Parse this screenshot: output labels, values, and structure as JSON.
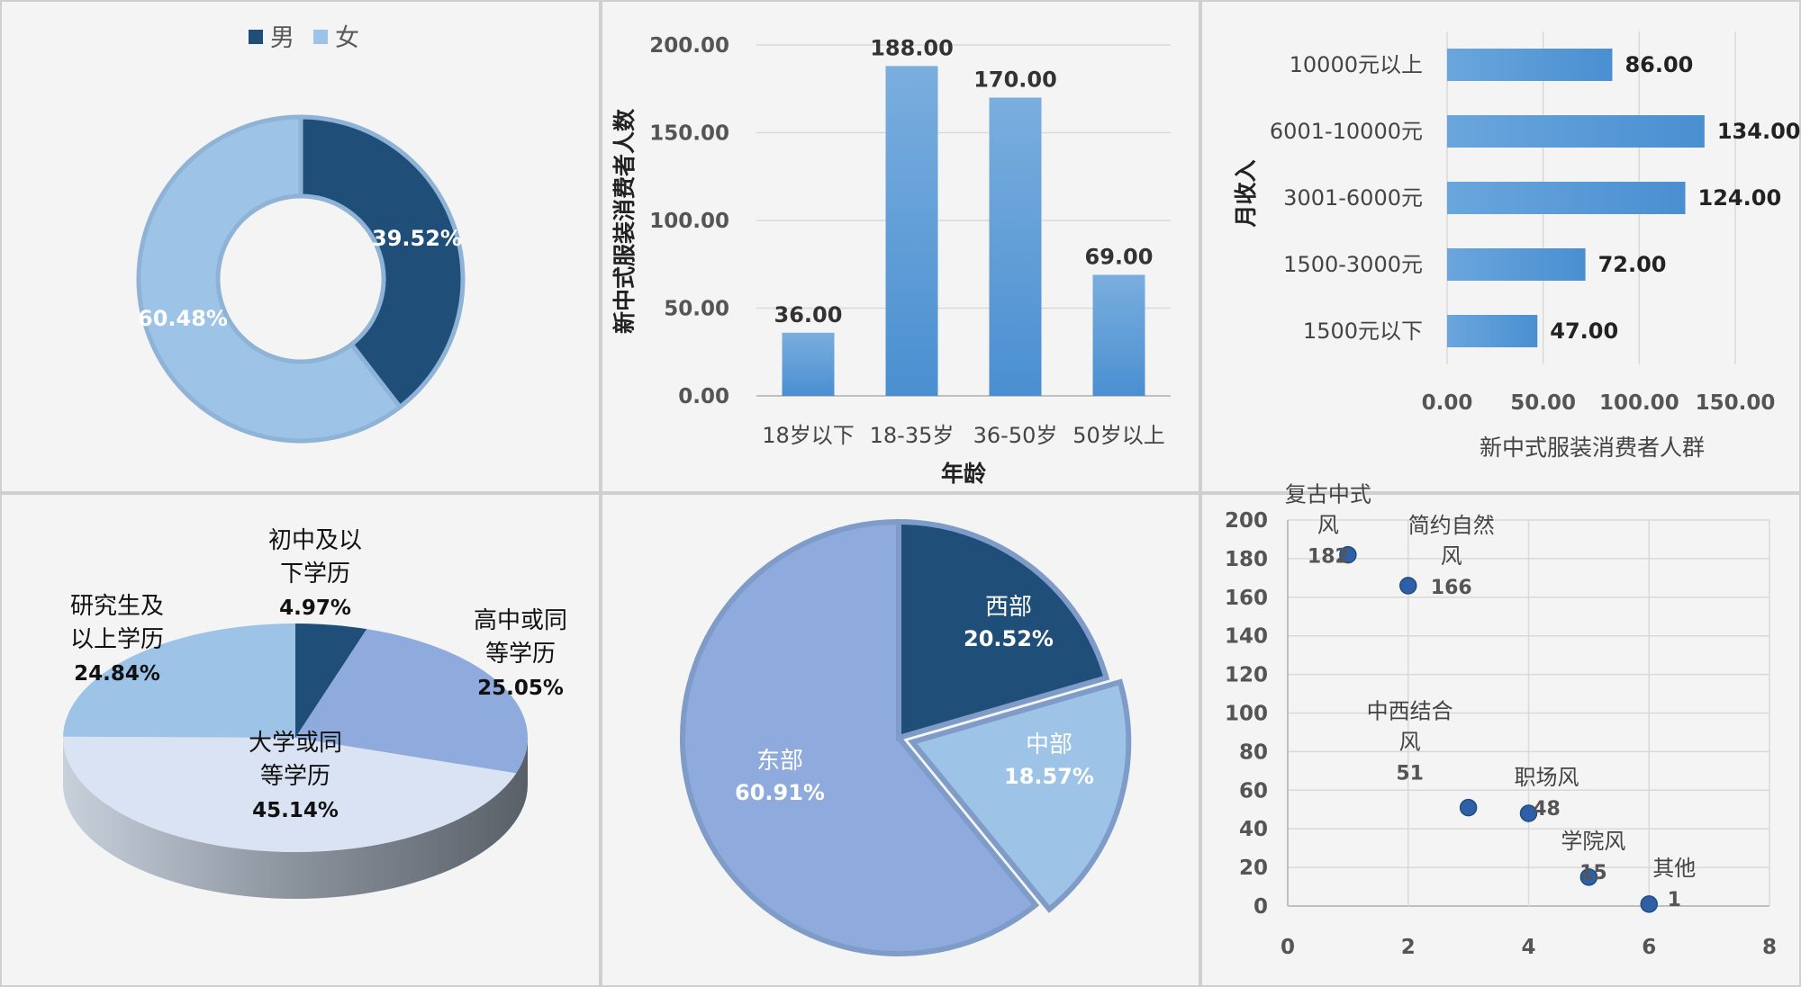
{
  "colors": {
    "dark_navy": "#1f4e79",
    "light_blue": "#9dc3e6",
    "bar_top": "#7aaede",
    "bar_bottom": "#4a8fd1",
    "periwinkle": "#8faadc",
    "pale_blue": "#dae3f3",
    "marker": "#2e5fa8"
  },
  "chart_data": [
    {
      "id": "gender",
      "type": "pie",
      "donut": true,
      "legend_position": "top",
      "categories": [
        "男",
        "女"
      ],
      "values": [
        39.52,
        60.48
      ],
      "labels": [
        "39.52%",
        "60.48%"
      ]
    },
    {
      "id": "age",
      "type": "bar",
      "categories": [
        "18岁以下",
        "18-35岁",
        "36-50岁",
        "50岁以上"
      ],
      "values": [
        36.0,
        188.0,
        170.0,
        69.0
      ],
      "value_labels": [
        "36.00",
        "188.00",
        "170.00",
        "69.00"
      ],
      "xlabel": "年龄",
      "ylabel": "新中式服装消费者人数",
      "ylim": [
        0,
        200
      ],
      "yticks": [
        "0.00",
        "50.00",
        "100.00",
        "150.00",
        "200.00"
      ],
      "grid": true
    },
    {
      "id": "income",
      "type": "bar",
      "orientation": "horizontal",
      "categories": [
        "10000元以上",
        "6001-10000元",
        "3001-6000元",
        "1500-3000元",
        "1500元以下"
      ],
      "values": [
        86.0,
        134.0,
        124.0,
        72.0,
        47.0
      ],
      "value_labels": [
        "86.00",
        "134.00",
        "124.00",
        "72.00",
        "47.00"
      ],
      "xlabel": "新中式服装消费者人群",
      "ylabel": "月收入",
      "xlim": [
        0,
        150
      ],
      "xticks": [
        "0.00",
        "50.00",
        "100.00",
        "150.00"
      ],
      "grid": true
    },
    {
      "id": "education",
      "type": "pie",
      "style": "3d",
      "categories": [
        "初中及以下学历",
        "高中或同等学历",
        "大学或同等学历",
        "研究生及以上学历"
      ],
      "values": [
        4.97,
        25.05,
        45.14,
        24.84
      ],
      "label_lines": [
        [
          "初中及以",
          "下学历",
          "4.97%"
        ],
        [
          "高中或同",
          "等学历",
          "25.05%"
        ],
        [
          "大学或同",
          "等学历",
          "45.14%"
        ],
        [
          "研究生及",
          "以上学历",
          "24.84%"
        ]
      ]
    },
    {
      "id": "region",
      "type": "pie",
      "categories": [
        "西部",
        "中部",
        "东部"
      ],
      "values": [
        20.52,
        18.57,
        60.91
      ],
      "label_lines": [
        [
          "西部",
          "20.52%"
        ],
        [
          "中部",
          "18.57%"
        ],
        [
          "东部",
          "60.91%"
        ]
      ]
    },
    {
      "id": "style",
      "type": "scatter",
      "points": [
        {
          "x": 1,
          "y": 182,
          "name_lines": [
            "复古中式",
            "风"
          ],
          "value": "182"
        },
        {
          "x": 2,
          "y": 166,
          "name_lines": [
            "简约自然",
            "风"
          ],
          "value": "166"
        },
        {
          "x": 3,
          "y": 51,
          "name_lines": [
            "中西结合",
            "风"
          ],
          "value": "51"
        },
        {
          "x": 4,
          "y": 48,
          "name_lines": [
            "职场风"
          ],
          "value": "48"
        },
        {
          "x": 5,
          "y": 15,
          "name_lines": [
            "学院风"
          ],
          "value": "15"
        },
        {
          "x": 6,
          "y": 1,
          "name_lines": [
            "其他"
          ],
          "value": "1"
        }
      ],
      "xlim": [
        0,
        8
      ],
      "ylim": [
        0,
        200
      ],
      "xticks": [
        "0",
        "2",
        "4",
        "6",
        "8"
      ],
      "yticks": [
        "0",
        "20",
        "40",
        "60",
        "80",
        "100",
        "120",
        "140",
        "160",
        "180",
        "200"
      ],
      "grid": true
    }
  ]
}
